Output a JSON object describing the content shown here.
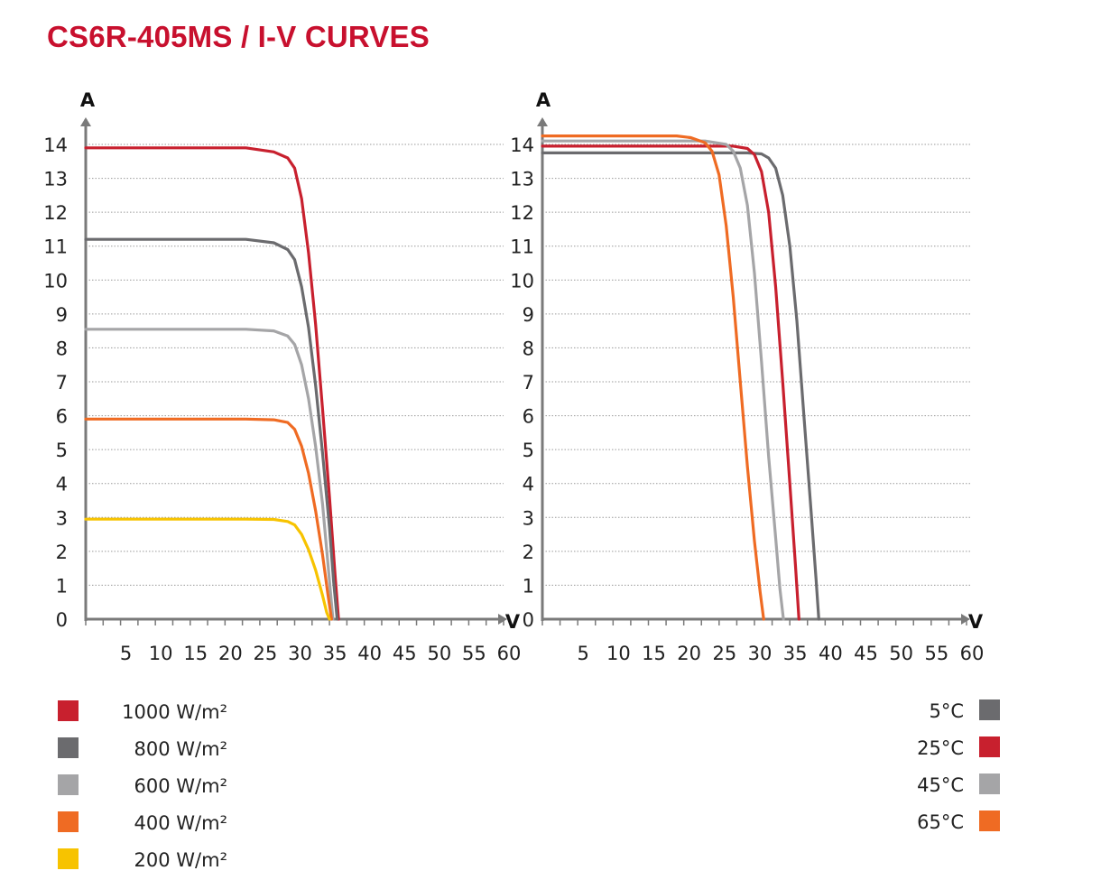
{
  "title": "CS6R-405MS / I-V CURVES",
  "chart_data": [
    {
      "type": "line",
      "xlabel": "V",
      "ylabel": "A",
      "xlim": [
        0,
        60
      ],
      "ylim": [
        0,
        14.3
      ],
      "x_ticks": [
        5,
        10,
        15,
        20,
        25,
        30,
        35,
        40,
        45,
        50,
        55,
        60
      ],
      "y_ticks": [
        0,
        1,
        2,
        3,
        4,
        5,
        6,
        7,
        8,
        9,
        10,
        11,
        12,
        13,
        14
      ],
      "grid": "horizontal dotted",
      "legend_position": "bottom-left",
      "series": [
        {
          "name": "1000 W/m²",
          "color": "#c8202e",
          "points": [
            [
              0,
              13.9
            ],
            [
              23,
              13.9
            ],
            [
              27,
              13.78
            ],
            [
              29,
              13.6
            ],
            [
              30,
              13.3
            ],
            [
              31,
              12.4
            ],
            [
              32,
              10.8
            ],
            [
              33,
              8.7
            ],
            [
              34,
              6.2
            ],
            [
              35,
              3.6
            ],
            [
              35.8,
              1.3
            ],
            [
              36.3,
              0
            ]
          ]
        },
        {
          "name": "800 W/m²",
          "color": "#6b6b6e",
          "points": [
            [
              0,
              11.2
            ],
            [
              23,
              11.2
            ],
            [
              27,
              11.1
            ],
            [
              29,
              10.9
            ],
            [
              30,
              10.6
            ],
            [
              31,
              9.8
            ],
            [
              32,
              8.6
            ],
            [
              33,
              6.9
            ],
            [
              34,
              4.9
            ],
            [
              35,
              2.7
            ],
            [
              35.6,
              1.1
            ],
            [
              36.1,
              0
            ]
          ]
        },
        {
          "name": "600 W/m²",
          "color": "#a5a5a7",
          "points": [
            [
              0,
              8.55
            ],
            [
              23,
              8.55
            ],
            [
              27,
              8.5
            ],
            [
              29,
              8.35
            ],
            [
              30,
              8.1
            ],
            [
              31,
              7.5
            ],
            [
              32,
              6.5
            ],
            [
              33,
              5.1
            ],
            [
              34,
              3.4
            ],
            [
              34.8,
              1.6
            ],
            [
              35.5,
              0
            ]
          ]
        },
        {
          "name": "400 W/m²",
          "color": "#ef6b23",
          "points": [
            [
              0,
              5.9
            ],
            [
              23,
              5.9
            ],
            [
              27,
              5.88
            ],
            [
              29,
              5.8
            ],
            [
              30,
              5.6
            ],
            [
              31,
              5.1
            ],
            [
              32,
              4.3
            ],
            [
              33,
              3.2
            ],
            [
              34,
              1.9
            ],
            [
              34.8,
              0.7
            ],
            [
              35.3,
              0
            ]
          ]
        },
        {
          "name": "200 W/m²",
          "color": "#f7c300",
          "points": [
            [
              0,
              2.95
            ],
            [
              23,
              2.95
            ],
            [
              27,
              2.94
            ],
            [
              29,
              2.88
            ],
            [
              30,
              2.78
            ],
            [
              31,
              2.5
            ],
            [
              32,
              2.05
            ],
            [
              33,
              1.45
            ],
            [
              34,
              0.7
            ],
            [
              34.6,
              0.2
            ],
            [
              35,
              0
            ]
          ]
        }
      ]
    },
    {
      "type": "line",
      "xlabel": "V",
      "ylabel": "A",
      "xlim": [
        0,
        60
      ],
      "ylim": [
        0,
        14.3
      ],
      "x_ticks": [
        5,
        10,
        15,
        20,
        25,
        30,
        35,
        40,
        45,
        50,
        55,
        60
      ],
      "y_ticks": [
        0,
        1,
        2,
        3,
        4,
        5,
        6,
        7,
        8,
        9,
        10,
        11,
        12,
        13,
        14
      ],
      "grid": "horizontal dotted",
      "legend_position": "bottom-right",
      "series": [
        {
          "name": "5°C",
          "color": "#6b6b6e",
          "points": [
            [
              0,
              13.75
            ],
            [
              29,
              13.75
            ],
            [
              31,
              13.72
            ],
            [
              32,
              13.6
            ],
            [
              33,
              13.3
            ],
            [
              34,
              12.5
            ],
            [
              35,
              11.0
            ],
            [
              36,
              8.8
            ],
            [
              37,
              6.0
            ],
            [
              38,
              3.2
            ],
            [
              38.7,
              1.2
            ],
            [
              39.1,
              0
            ]
          ]
        },
        {
          "name": "25°C",
          "color": "#c8202e",
          "points": [
            [
              0,
              13.95
            ],
            [
              27,
              13.95
            ],
            [
              29,
              13.88
            ],
            [
              30,
              13.7
            ],
            [
              31,
              13.2
            ],
            [
              32,
              12.0
            ],
            [
              33,
              9.8
            ],
            [
              34,
              7.0
            ],
            [
              35,
              4.0
            ],
            [
              35.8,
              1.6
            ],
            [
              36.3,
              0
            ]
          ]
        },
        {
          "name": "45°C",
          "color": "#a5a5a7",
          "points": [
            [
              0,
              14.1
            ],
            [
              23,
              14.1
            ],
            [
              26,
              14.0
            ],
            [
              27,
              13.8
            ],
            [
              28,
              13.3
            ],
            [
              29,
              12.2
            ],
            [
              30,
              10.2
            ],
            [
              31,
              7.6
            ],
            [
              32,
              4.8
            ],
            [
              33,
              2.4
            ],
            [
              33.6,
              0.9
            ],
            [
              34.1,
              0
            ]
          ]
        },
        {
          "name": "65°C",
          "color": "#ef6b23",
          "points": [
            [
              0,
              14.25
            ],
            [
              19,
              14.25
            ],
            [
              21,
              14.2
            ],
            [
              23,
              14.05
            ],
            [
              24,
              13.8
            ],
            [
              25,
              13.1
            ],
            [
              26,
              11.6
            ],
            [
              27,
              9.5
            ],
            [
              28,
              7.0
            ],
            [
              29,
              4.5
            ],
            [
              30,
              2.3
            ],
            [
              30.8,
              0.8
            ],
            [
              31.3,
              0
            ]
          ]
        }
      ]
    }
  ]
}
